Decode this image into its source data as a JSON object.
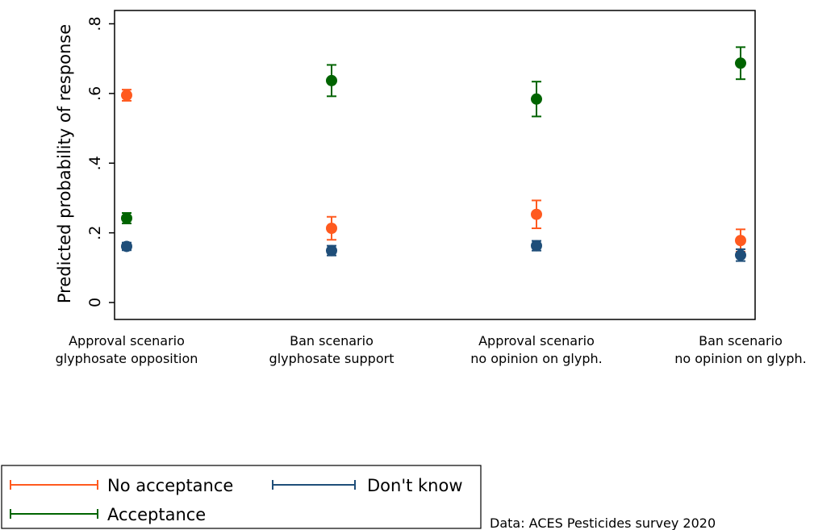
{
  "chart_data": {
    "type": "scatter",
    "subtype": "point estimates with confidence intervals",
    "ylabel": "Predicted probability of response",
    "xlabel": "",
    "ylim": [
      0,
      0.8
    ],
    "yticks": [
      {
        "value": 0,
        "label": "0"
      },
      {
        "value": 0.2,
        "label": ".2"
      },
      {
        "value": 0.4,
        "label": ".4"
      },
      {
        "value": 0.6,
        "label": ".6"
      },
      {
        "value": 0.8,
        "label": ".8"
      }
    ],
    "categories": [
      {
        "line1": "Approval scenario",
        "line2": "glyphosate opposition"
      },
      {
        "line1": "Ban scenario",
        "line2": "glyphosate support"
      },
      {
        "line1": "Approval scenario",
        "line2": "no opinion on glyph."
      },
      {
        "line1": "Ban scenario",
        "line2": "no opinion on glyph."
      }
    ],
    "grid": false,
    "legend_position": "bottom-left",
    "series": [
      {
        "name": "No acceptance",
        "color": "#ff5a1f",
        "values": [
          0.595,
          0.213,
          0.253,
          0.178
        ],
        "lower": [
          0.579,
          0.18,
          0.213,
          0.146
        ],
        "upper": [
          0.611,
          0.246,
          0.293,
          0.21
        ]
      },
      {
        "name": "Don't know",
        "color": "#1f4e79",
        "values": [
          0.161,
          0.149,
          0.163,
          0.136
        ],
        "lower": [
          0.15,
          0.135,
          0.149,
          0.119
        ],
        "upper": [
          0.172,
          0.163,
          0.177,
          0.153
        ]
      },
      {
        "name": "Acceptance",
        "color": "#006400",
        "values": [
          0.242,
          0.637,
          0.584,
          0.687
        ],
        "lower": [
          0.227,
          0.592,
          0.534,
          0.641
        ],
        "upper": [
          0.257,
          0.682,
          0.634,
          0.733
        ]
      }
    ],
    "legend": {
      "rows": [
        [
          "No acceptance",
          "Don't know"
        ],
        [
          "Acceptance"
        ]
      ]
    },
    "note": "Data: ACES Pesticides survey 2020"
  }
}
